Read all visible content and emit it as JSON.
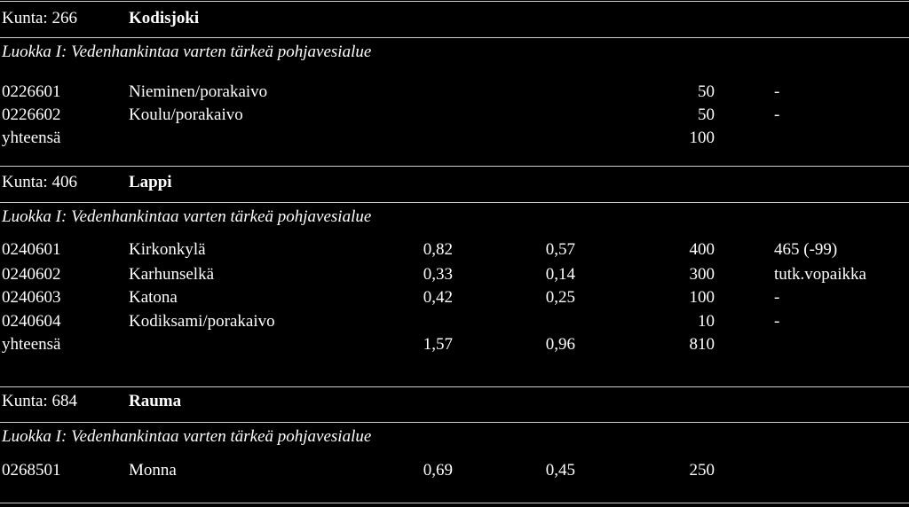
{
  "sections": [
    {
      "kunta_label": "Kunta: 266",
      "kunta_name": "Kodisjoki",
      "luokka": "Luokka I: Vedenhankintaa varten tärkeä pohjavesialue",
      "rows": [
        {
          "code": "0226601",
          "name": "Nieminen/porakaivo",
          "a": "",
          "b": "",
          "c": "50",
          "d": "-"
        },
        {
          "code": "0226602",
          "name": "Koulu/porakaivo",
          "a": "",
          "b": "",
          "c": "50",
          "d": "-"
        },
        {
          "code": "yhteensä",
          "name": "",
          "a": "",
          "b": "",
          "c": "100",
          "d": ""
        }
      ]
    },
    {
      "kunta_label": "Kunta: 406",
      "kunta_name": "Lappi",
      "luokka": "Luokka I: Vedenhankintaa varten tärkeä pohjavesialue",
      "rows": [
        {
          "code": "0240601",
          "name": "Kirkonkylä",
          "a": "0,82",
          "b": "0,57",
          "c": "400",
          "d": "465 (-99)"
        },
        {
          "code": "0240602",
          "name": "Karhunselkä",
          "a": "0,33",
          "b": "0,14",
          "c": "300",
          "d": "tutk.vopaikka"
        },
        {
          "code": "0240603",
          "name": "Katona",
          "a": "0,42",
          "b": "0,25",
          "c": "100",
          "d": "-"
        },
        {
          "code": "0240604",
          "name": "Kodiksami/porakaivo",
          "a": "",
          "b": "",
          "c": "10",
          "d": "-"
        },
        {
          "code": "yhteensä",
          "name": "",
          "a": "1,57",
          "b": "0,96",
          "c": "810",
          "d": ""
        }
      ]
    },
    {
      "kunta_label": "Kunta: 684",
      "kunta_name": "Rauma",
      "luokka": "Luokka I: Vedenhankintaa varten tärkeä pohjavesialue",
      "rows": [
        {
          "code": "0268501",
          "name": "Monna",
          "a": "0,69",
          "b": "0,45",
          "c": "250",
          "d": ""
        }
      ]
    }
  ]
}
